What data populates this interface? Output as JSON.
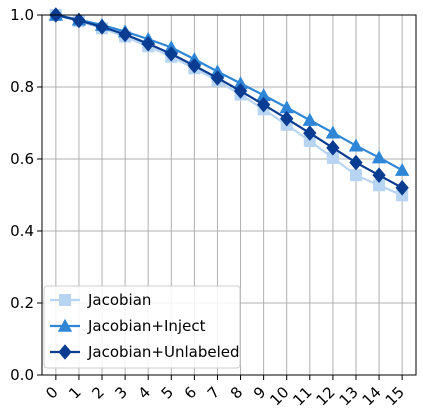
{
  "chart_data": {
    "type": "line",
    "title": "",
    "xlabel": "",
    "ylabel": "",
    "x": [
      0,
      1,
      2,
      3,
      4,
      5,
      6,
      7,
      8,
      9,
      10,
      11,
      12,
      13,
      14,
      15
    ],
    "xlim": [
      -0.6,
      15.6
    ],
    "ylim": [
      0.0,
      1.0
    ],
    "yticks": [
      "0.0",
      "0.2",
      "0.4",
      "0.6",
      "0.8",
      "1.0"
    ],
    "xticks": [
      "0",
      "1",
      "2",
      "3",
      "4",
      "5",
      "6",
      "7",
      "8",
      "9",
      "10",
      "11",
      "12",
      "13",
      "14",
      "15"
    ],
    "grid": true,
    "legend_position": "lower-left",
    "series": [
      {
        "name": "Jacobian",
        "color": "#b7d4f2",
        "marker": "square",
        "values": [
          1.0,
          0.983,
          0.963,
          0.94,
          0.913,
          0.884,
          0.852,
          0.817,
          0.779,
          0.738,
          0.695,
          0.65,
          0.603,
          0.555,
          0.527,
          0.499
        ]
      },
      {
        "name": "Jacobian+Inject",
        "color": "#2f86d6",
        "marker": "triangle",
        "values": [
          1.0,
          0.987,
          0.972,
          0.954,
          0.933,
          0.91,
          0.877,
          0.843,
          0.81,
          0.777,
          0.743,
          0.708,
          0.673,
          0.637,
          0.604,
          0.569
        ]
      },
      {
        "name": "Jacobian+Unlabeled",
        "color": "#0a3d91",
        "marker": "diamond",
        "values": [
          1.0,
          0.985,
          0.967,
          0.946,
          0.92,
          0.892,
          0.859,
          0.825,
          0.789,
          0.751,
          0.712,
          0.672,
          0.631,
          0.59,
          0.555,
          0.52
        ]
      }
    ]
  }
}
